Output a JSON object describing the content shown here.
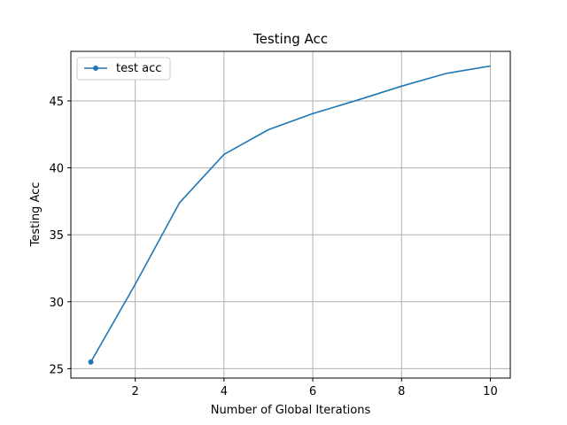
{
  "chart_data": {
    "type": "line",
    "title": "Testing Acc",
    "xlabel": "Number of Global Iterations",
    "ylabel": "Testing Acc",
    "xlim": [
      0.55,
      10.45
    ],
    "ylim": [
      24.3,
      48.7
    ],
    "xticks": [
      2,
      4,
      6,
      8,
      10
    ],
    "yticks": [
      25,
      30,
      35,
      40,
      45
    ],
    "grid": true,
    "legend_position": "top-left",
    "series": [
      {
        "name": "test acc",
        "color": "#1f77b4",
        "x": [
          1,
          2,
          3,
          4,
          5,
          6,
          7,
          8,
          9,
          10
        ],
        "y": [
          25.5,
          31.3,
          37.4,
          41.0,
          42.85,
          44.05,
          45.05,
          46.1,
          47.05,
          47.6
        ],
        "marker_at_first_point_only": true
      }
    ]
  }
}
